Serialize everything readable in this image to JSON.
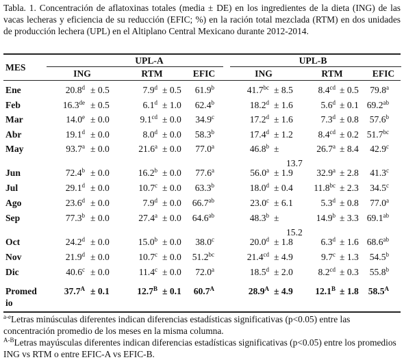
{
  "caption": "Tabla. 1. Concentración de aflatoxinas totales (media ± DE) en los ingredientes de la dieta (ING) de las vacas lecheras y eficiencia de su reducción (EFIC; %) en la ración total mezclada (RTM) en dos unidades de producción lechera (UPL) en el Altiplano Central Mexicano durante 2012-2014.",
  "header": {
    "mes": "MES",
    "groups": [
      "UPL-A",
      "UPL-B"
    ],
    "columns": [
      "ING",
      "RTM",
      "EFIC",
      "ING",
      "RTM",
      "EFIC"
    ]
  },
  "rows": [
    {
      "mes": "Ene",
      "a_ing": "20.8",
      "a_ing_s": "d",
      "a_ing_sd": "± 0.5",
      "a_rtm": "7.9",
      "a_rtm_s": "d",
      "a_rtm_sd": "± 0.5",
      "a_efic": "61.9",
      "a_efic_s": "b",
      "b_ing": "41.7",
      "b_ing_s": "bc",
      "b_ing_sd": "± 8.5",
      "b_rtm": "8.4",
      "b_rtm_s": "cd",
      "b_rtm_sd": "± 0.5",
      "b_efic": "79.8",
      "b_efic_s": "a"
    },
    {
      "mes": "Feb",
      "a_ing": "16.3",
      "a_ing_s": "de",
      "a_ing_sd": "± 0.5",
      "a_rtm": "6.1",
      "a_rtm_s": "d",
      "a_rtm_sd": "± 1.0",
      "a_efic": "62.4",
      "a_efic_s": "b",
      "b_ing": "18.2",
      "b_ing_s": "d",
      "b_ing_sd": "± 1.6",
      "b_rtm": "5.6",
      "b_rtm_s": "d",
      "b_rtm_sd": "± 0.1",
      "b_efic": "69.2",
      "b_efic_s": "ab"
    },
    {
      "mes": "Mar",
      "a_ing": "14.0",
      "a_ing_s": "e",
      "a_ing_sd": "± 0.0",
      "a_rtm": "9.1",
      "a_rtm_s": "cd",
      "a_rtm_sd": "± 0.0",
      "a_efic": "34.9",
      "a_efic_s": "c",
      "b_ing": "17.2",
      "b_ing_s": "d",
      "b_ing_sd": "± 1.6",
      "b_rtm": "7.3",
      "b_rtm_s": "d",
      "b_rtm_sd": "± 0.8",
      "b_efic": "57.6",
      "b_efic_s": "b"
    },
    {
      "mes": "Abr",
      "a_ing": "19.1",
      "a_ing_s": "d",
      "a_ing_sd": "± 0.0",
      "a_rtm": "8.0",
      "a_rtm_s": "d",
      "a_rtm_sd": "± 0.0",
      "a_efic": "58.3",
      "a_efic_s": "b",
      "b_ing": "17.4",
      "b_ing_s": "d",
      "b_ing_sd": "± 1.2",
      "b_rtm": "8.4",
      "b_rtm_s": "cd",
      "b_rtm_sd": "± 0.2",
      "b_efic": "51.7",
      "b_efic_s": "bc"
    },
    {
      "mes": "May",
      "a_ing": "93.7",
      "a_ing_s": "a",
      "a_ing_sd": "± 0.0",
      "a_rtm": "21.6",
      "a_rtm_s": "a",
      "a_rtm_sd": "± 0.0",
      "a_efic": "77.0",
      "a_efic_s": "a",
      "b_ing": "46.8",
      "b_ing_s": "b",
      "b_ing_sd": "±",
      "b_ing_sd2": "13.7",
      "b_rtm": "26.7",
      "b_rtm_s": "a",
      "b_rtm_sd": "± 8.4",
      "b_efic": "42.9",
      "b_efic_s": "c"
    },
    {
      "mes": "Jun",
      "a_ing": "72.4",
      "a_ing_s": "b",
      "a_ing_sd": "± 0.0",
      "a_rtm": "16.2",
      "a_rtm_s": "b",
      "a_rtm_sd": "± 0.0",
      "a_efic": "77.6",
      "a_efic_s": "a",
      "b_ing": "56.0",
      "b_ing_s": "a",
      "b_ing_sd": "± 1.9",
      "b_rtm": "32.9",
      "b_rtm_s": "a",
      "b_rtm_sd": "± 2.8",
      "b_efic": "41.3",
      "b_efic_s": "c"
    },
    {
      "mes": "Jul",
      "a_ing": "29.1",
      "a_ing_s": "d",
      "a_ing_sd": "± 0.0",
      "a_rtm": "10.7",
      "a_rtm_s": "c",
      "a_rtm_sd": "± 0.0",
      "a_efic": "63.3",
      "a_efic_s": "b",
      "b_ing": "18.0",
      "b_ing_s": "d",
      "b_ing_sd": "± 0.4",
      "b_rtm": "11.8",
      "b_rtm_s": "bc",
      "b_rtm_sd": "± 2.3",
      "b_efic": "34.5",
      "b_efic_s": "c"
    },
    {
      "mes": "Ago",
      "a_ing": "23.6",
      "a_ing_s": "d",
      "a_ing_sd": "± 0.0",
      "a_rtm": "7.9",
      "a_rtm_s": "d",
      "a_rtm_sd": "± 0.0",
      "a_efic": "66.7",
      "a_efic_s": "ab",
      "b_ing": "23.0",
      "b_ing_s": "c",
      "b_ing_sd": "± 6.1",
      "b_rtm": "5.3",
      "b_rtm_s": "d",
      "b_rtm_sd": "± 0.8",
      "b_efic": "77.0",
      "b_efic_s": "a"
    },
    {
      "mes": "Sep",
      "a_ing": "77.3",
      "a_ing_s": "b",
      "a_ing_sd": "± 0.0",
      "a_rtm": "27.4",
      "a_rtm_s": "a",
      "a_rtm_sd": "± 0.0",
      "a_efic": "64.6",
      "a_efic_s": "ab",
      "b_ing": "48.3",
      "b_ing_s": "b",
      "b_ing_sd": "±",
      "b_ing_sd2": "15.2",
      "b_rtm": "14.9",
      "b_rtm_s": "b",
      "b_rtm_sd": "± 3.3",
      "b_efic": "69.1",
      "b_efic_s": "ab"
    },
    {
      "mes": "Oct",
      "a_ing": "24.2",
      "a_ing_s": "d",
      "a_ing_sd": "± 0.0",
      "a_rtm": "15.0",
      "a_rtm_s": "b",
      "a_rtm_sd": "± 0.0",
      "a_efic": "38.0",
      "a_efic_s": "c",
      "b_ing": "20.0",
      "b_ing_s": "d",
      "b_ing_sd": "± 1.8",
      "b_rtm": "6.3",
      "b_rtm_s": "d",
      "b_rtm_sd": "± 1.6",
      "b_efic": "68.6",
      "b_efic_s": "ab"
    },
    {
      "mes": "Nov",
      "a_ing": "21.9",
      "a_ing_s": "d",
      "a_ing_sd": "± 0.0",
      "a_rtm": "10.7",
      "a_rtm_s": "c",
      "a_rtm_sd": "± 0.0",
      "a_efic": "51.2",
      "a_efic_s": "bc",
      "b_ing": "21.4",
      "b_ing_s": "cd",
      "b_ing_sd": "± 4.9",
      "b_rtm": "9.7",
      "b_rtm_s": "c",
      "b_rtm_sd": "± 1.3",
      "b_efic": "54.5",
      "b_efic_s": "b"
    },
    {
      "mes": "Dic",
      "a_ing": "40.6",
      "a_ing_s": "c",
      "a_ing_sd": "± 0.0",
      "a_rtm": "11.4",
      "a_rtm_s": "c",
      "a_rtm_sd": "± 0.0",
      "a_efic": "72.0",
      "a_efic_s": "a",
      "b_ing": "18.5",
      "b_ing_s": "d",
      "b_ing_sd": "± 2.0",
      "b_rtm": "8.2",
      "b_rtm_s": "cd",
      "b_rtm_sd": "± 0.3",
      "b_efic": "55.8",
      "b_efic_s": "b"
    }
  ],
  "promedio": {
    "mes1": "Promed",
    "mes2": "io",
    "a_ing": "37.7",
    "a_ing_s": "A",
    "a_ing_sd": "± 0.1",
    "a_rtm": "12.7",
    "a_rtm_s": "B",
    "a_rtm_sd": "± 0.1",
    "a_efic": "60.7",
    "a_efic_s": "A",
    "b_ing": "28.9",
    "b_ing_s": "A",
    "b_ing_sd": "± 4.9",
    "b_rtm": "12.1",
    "b_rtm_s": "B",
    "b_rtm_sd": "± 1.8",
    "b_efic": "58.5",
    "b_efic_s": "A"
  },
  "footnote": {
    "sup1": "a-e",
    "text1": "Letras minúsculas diferentes indican diferencias estadísticas significativas (p<0.05) entre las concentración promedio de los meses en la misma columna.",
    "sup2": "A-B",
    "text2": "Letras mayúsculas diferentes indican diferencias estadísticas significativas (p<0.05) entre los promedios ING vs RTM o entre EFIC-A vs EFIC-B."
  }
}
